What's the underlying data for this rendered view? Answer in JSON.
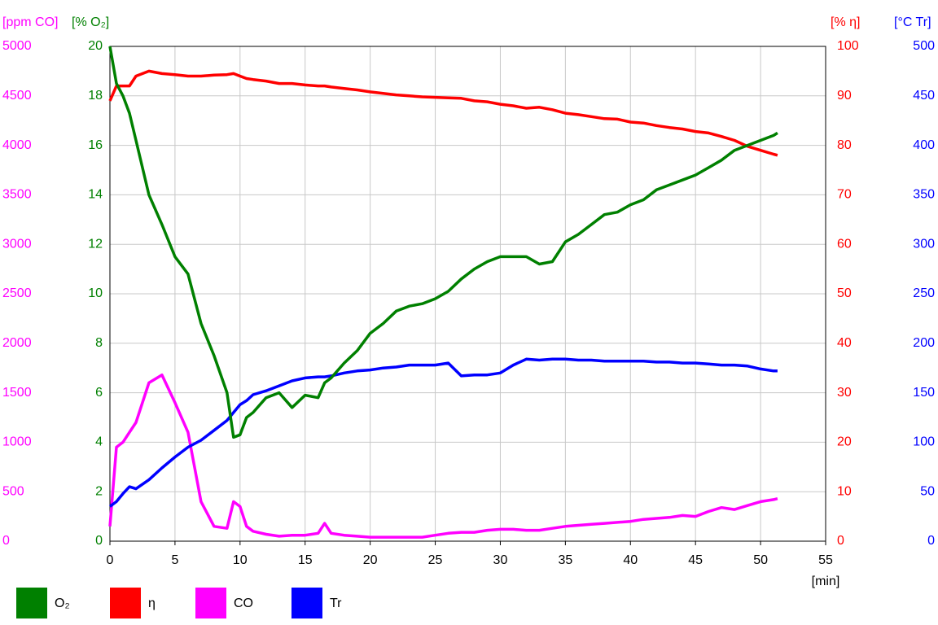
{
  "chart_data": {
    "type": "line",
    "x_label": "[min]",
    "xlim": [
      0,
      55
    ],
    "xticks": [
      0,
      5,
      10,
      15,
      20,
      25,
      30,
      35,
      40,
      45,
      50,
      55
    ],
    "grid": true,
    "axes": [
      {
        "id": "co",
        "label": "[ppm CO]",
        "side": "left",
        "color": "#ff00ff",
        "lim": [
          0,
          5000
        ],
        "ticks": [
          0,
          500,
          1000,
          1500,
          2000,
          2500,
          3000,
          3500,
          4000,
          4500,
          5000
        ]
      },
      {
        "id": "o2",
        "label": "[% O₂]",
        "side": "left",
        "color": "#008000",
        "lim": [
          0,
          20
        ],
        "ticks": [
          0,
          2,
          4,
          6,
          8,
          10,
          12,
          14,
          16,
          18,
          20
        ]
      },
      {
        "id": "eta",
        "label": "[% η]",
        "side": "right",
        "color": "#ff0000",
        "lim": [
          0,
          100
        ],
        "ticks": [
          0,
          10,
          20,
          30,
          40,
          50,
          60,
          70,
          80,
          90,
          100
        ]
      },
      {
        "id": "tr",
        "label": "[°C Tr]",
        "side": "right",
        "color": "#0000ff",
        "lim": [
          0,
          500
        ],
        "ticks": [
          0,
          50,
          100,
          150,
          200,
          250,
          300,
          350,
          400,
          450,
          500
        ]
      }
    ],
    "x": [
      0,
      0.5,
      1,
      1.5,
      2,
      3,
      4,
      5,
      6,
      7,
      8,
      9,
      9.5,
      10,
      10.5,
      11,
      12,
      13,
      14,
      15,
      16,
      16.5,
      17,
      18,
      19,
      20,
      21,
      22,
      23,
      24,
      25,
      26,
      27,
      28,
      29,
      30,
      31,
      32,
      33,
      34,
      35,
      36,
      37,
      38,
      39,
      40,
      41,
      42,
      43,
      44,
      45,
      46,
      47,
      48,
      49,
      50,
      51,
      51.3
    ],
    "series": [
      {
        "name": "O₂",
        "axis": "o2",
        "color": "#008000",
        "values": [
          20,
          18.5,
          18,
          17.3,
          16.2,
          14,
          12.8,
          11.5,
          10.8,
          8.8,
          7.5,
          6,
          4.2,
          4.3,
          5,
          5.2,
          5.8,
          6,
          5.4,
          5.9,
          5.8,
          6.4,
          6.6,
          7.2,
          7.7,
          8.4,
          8.8,
          9.3,
          9.5,
          9.6,
          9.8,
          10.1,
          10.6,
          11,
          11.3,
          11.5,
          11.5,
          11.5,
          11.2,
          11.3,
          12.1,
          12.4,
          12.8,
          13.2,
          13.3,
          13.6,
          13.8,
          14.2,
          14.4,
          14.6,
          14.8,
          15.1,
          15.4,
          15.8,
          16,
          16.2,
          16.4,
          16.5
        ]
      },
      {
        "name": "η",
        "axis": "eta",
        "color": "#ff0000",
        "values": [
          89,
          92,
          92,
          92,
          94,
          95,
          94.5,
          94.3,
          94,
          94,
          94.2,
          94.3,
          94.5,
          94,
          93.5,
          93.3,
          93,
          92.5,
          92.5,
          92.2,
          92,
          92,
          91.8,
          91.5,
          91.2,
          90.8,
          90.5,
          90.2,
          90,
          89.8,
          89.7,
          89.6,
          89.5,
          89,
          88.8,
          88.3,
          88,
          87.5,
          87.7,
          87.2,
          86.5,
          86.2,
          85.8,
          85.4,
          85.3,
          84.7,
          84.5,
          84,
          83.6,
          83.3,
          82.8,
          82.5,
          81.8,
          81,
          79.8,
          79,
          78.2,
          78
        ]
      },
      {
        "name": "CO",
        "axis": "co",
        "color": "#ff00ff",
        "values": [
          150,
          950,
          1000,
          1100,
          1200,
          1600,
          1680,
          1400,
          1100,
          400,
          150,
          130,
          400,
          350,
          150,
          100,
          70,
          50,
          60,
          60,
          80,
          180,
          80,
          60,
          50,
          40,
          40,
          40,
          40,
          40,
          60,
          80,
          90,
          90,
          110,
          120,
          120,
          110,
          110,
          130,
          150,
          160,
          170,
          180,
          190,
          200,
          220,
          230,
          240,
          260,
          250,
          300,
          340,
          320,
          360,
          400,
          420,
          430
        ]
      },
      {
        "name": "Tr",
        "axis": "tr",
        "color": "#0000ff",
        "values": [
          35,
          40,
          48,
          55,
          53,
          62,
          74,
          85,
          95,
          102,
          112,
          122,
          130,
          138,
          142,
          148,
          152,
          157,
          162,
          165,
          166,
          166,
          167,
          170,
          172,
          173,
          175,
          176,
          178,
          178,
          178,
          180,
          167,
          168,
          168,
          170,
          178,
          184,
          183,
          184,
          184,
          183,
          183,
          182,
          182,
          182,
          182,
          181,
          181,
          180,
          180,
          179,
          178,
          178,
          177,
          174,
          172,
          172
        ]
      }
    ]
  }
}
